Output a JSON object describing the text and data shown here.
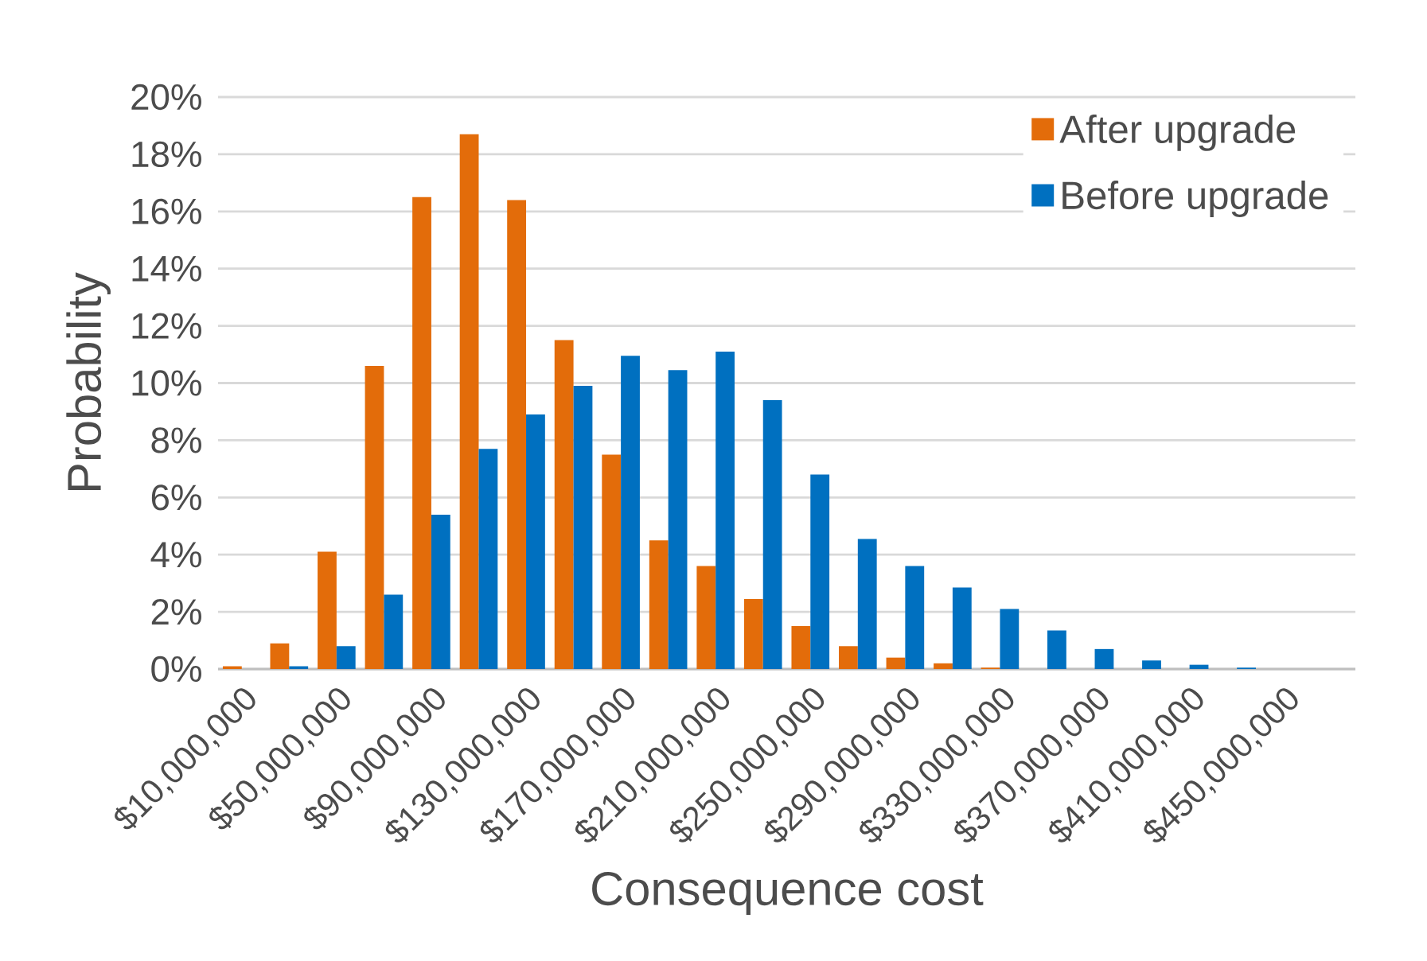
{
  "chart_data": {
    "type": "bar",
    "xlabel": "Consequence cost",
    "ylabel": "Probability",
    "categories": [
      "$10,000,000",
      null,
      "$50,000,000",
      null,
      "$90,000,000",
      null,
      "$130,000,000",
      null,
      "$170,000,000",
      null,
      "$210,000,000",
      null,
      "$250,000,000",
      null,
      "$290,000,000",
      null,
      "$330,000,000",
      null,
      "$370,000,000",
      null,
      "$410,000,000",
      null,
      "$450,000,000",
      null
    ],
    "series": [
      {
        "name": "After upgrade",
        "color": "#e36c0a",
        "values": [
          0.1,
          0.9,
          4.1,
          10.6,
          16.5,
          18.7,
          16.4,
          11.5,
          7.5,
          4.5,
          3.6,
          2.45,
          1.5,
          0.8,
          0.4,
          0.2,
          0.05,
          0,
          0,
          0,
          0,
          0,
          0,
          0
        ]
      },
      {
        "name": "Before upgrade",
        "color": "#0070c0",
        "values": [
          0,
          0.1,
          0.8,
          2.6,
          5.4,
          7.7,
          8.9,
          9.9,
          10.95,
          10.45,
          11.1,
          9.4,
          6.8,
          4.55,
          3.6,
          2.85,
          2.1,
          1.35,
          0.7,
          0.3,
          0.15,
          0.05,
          0,
          0
        ]
      }
    ],
    "ylim": [
      0,
      20
    ],
    "yticks": [
      {
        "value": 0,
        "label": "0%"
      },
      {
        "value": 2,
        "label": "2%"
      },
      {
        "value": 4,
        "label": "4%"
      },
      {
        "value": 6,
        "label": "6%"
      },
      {
        "value": 8,
        "label": "8%"
      },
      {
        "value": 10,
        "label": "10%"
      },
      {
        "value": 12,
        "label": "12%"
      },
      {
        "value": 14,
        "label": "14%"
      },
      {
        "value": 16,
        "label": "16%"
      },
      {
        "value": 18,
        "label": "18%"
      },
      {
        "value": 20,
        "label": "20%"
      }
    ],
    "grid": "y",
    "legend": "top right"
  }
}
